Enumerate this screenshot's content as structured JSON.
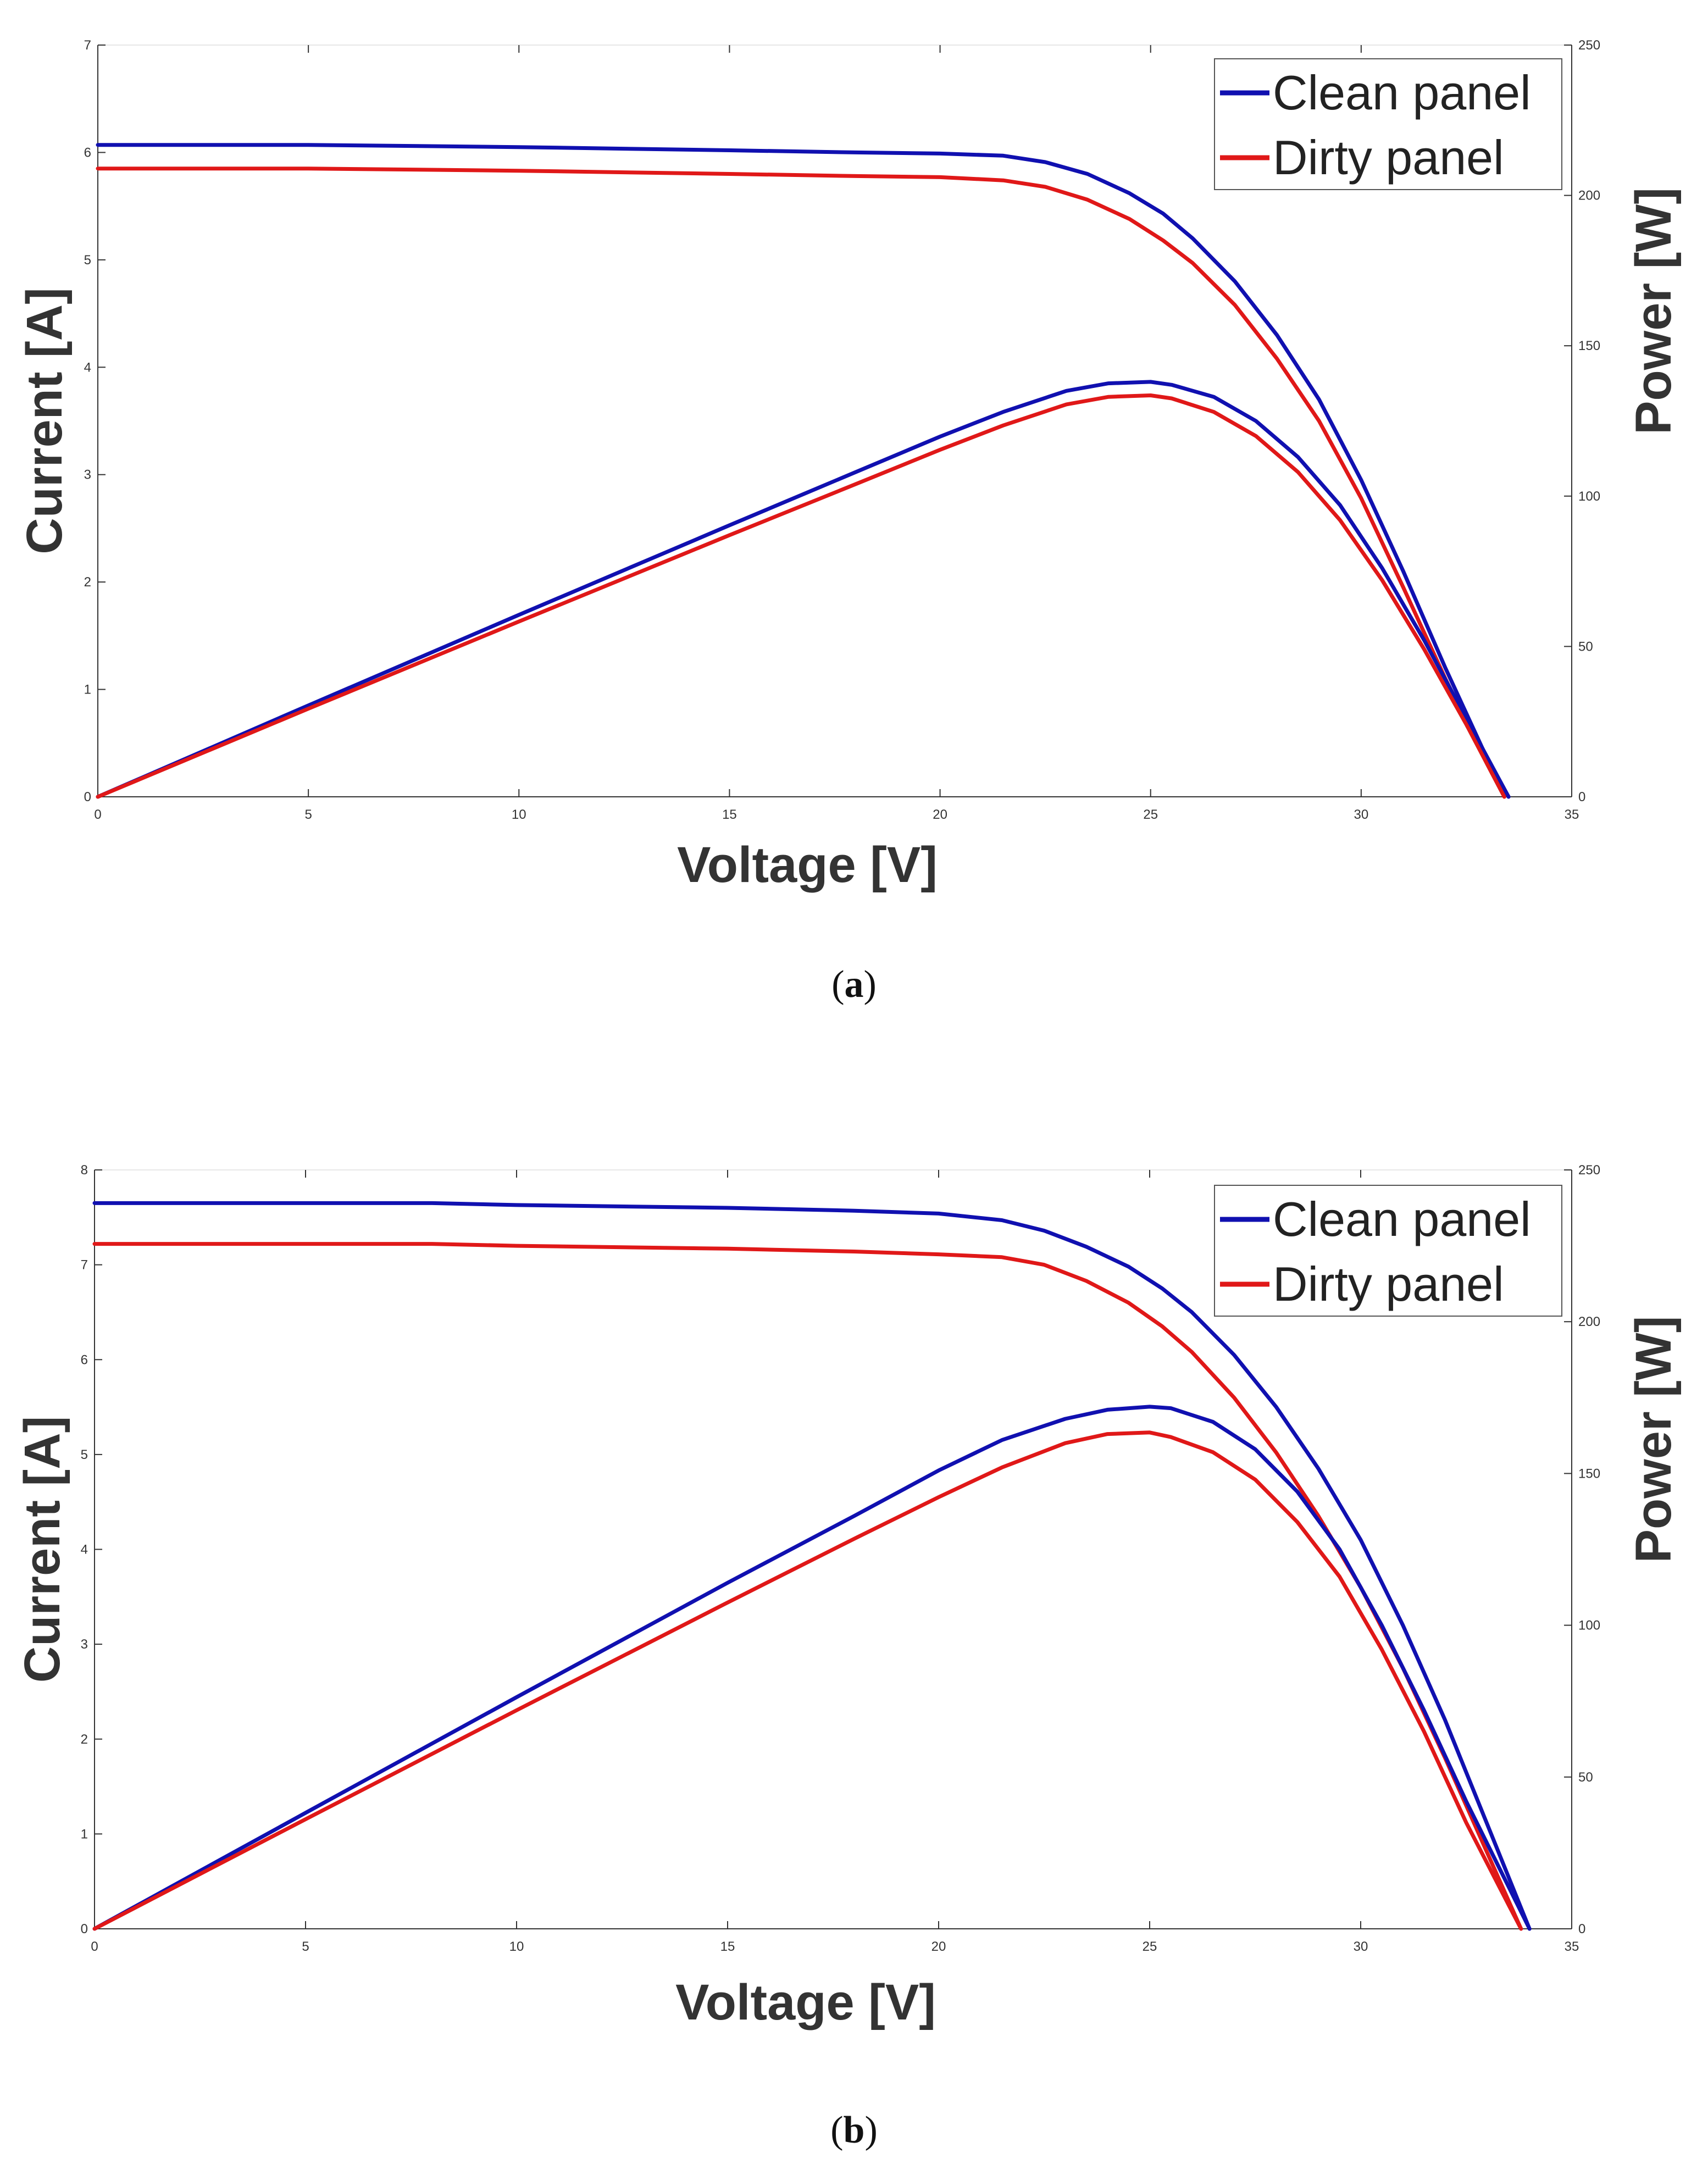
{
  "chart_data": [
    {
      "id": "a",
      "type": "line",
      "caption_open": "(",
      "caption_letter": "a",
      "caption_close": ")",
      "xlabel": "Voltage [V]",
      "ylabel": "Current [A]",
      "y2label": "Power [W]",
      "xlim": [
        0,
        35
      ],
      "ylim": [
        0,
        7
      ],
      "y2lim": [
        0,
        250
      ],
      "xticks": [
        "0",
        "5",
        "10",
        "15",
        "20",
        "25",
        "30",
        "35"
      ],
      "yticks": [
        "0",
        "1",
        "2",
        "3",
        "4",
        "5",
        "6",
        "7"
      ],
      "y2ticks": [
        "0",
        "50",
        "100",
        "150",
        "200",
        "250"
      ],
      "legend": {
        "position": "top-right",
        "entries": [
          "Clean panel",
          "Dirty panel"
        ]
      },
      "colors": {
        "clean": "#1010b0",
        "dirty": "#e01818"
      },
      "series": [
        {
          "name": "Clean panel",
          "kind": "current",
          "color": "#1010b0",
          "x": [
            0,
            5,
            10,
            15,
            18,
            20,
            21.5,
            22.5,
            23.5,
            24.5,
            25.3,
            26,
            27,
            28,
            29,
            30,
            31,
            32,
            33,
            33.5
          ],
          "y": [
            6.07,
            6.07,
            6.05,
            6.02,
            6.0,
            5.99,
            5.97,
            5.91,
            5.8,
            5.62,
            5.43,
            5.2,
            4.8,
            4.3,
            3.7,
            2.95,
            2.1,
            1.2,
            0.35,
            0
          ]
        },
        {
          "name": "Dirty panel",
          "kind": "current",
          "color": "#e01818",
          "x": [
            0,
            5,
            10,
            15,
            18,
            20,
            21.5,
            22.5,
            23.5,
            24.5,
            25.3,
            26,
            27,
            28,
            29,
            30,
            31,
            32,
            33,
            33.4
          ],
          "y": [
            5.85,
            5.85,
            5.83,
            5.8,
            5.78,
            5.77,
            5.74,
            5.68,
            5.56,
            5.38,
            5.18,
            4.97,
            4.58,
            4.08,
            3.5,
            2.78,
            1.95,
            1.1,
            0.3,
            0
          ]
        },
        {
          "name": "Clean panel",
          "kind": "power",
          "color": "#1010b0",
          "x": [
            0,
            5,
            10,
            15,
            18,
            20,
            21.5,
            23,
            24,
            25,
            25.5,
            26.5,
            27.5,
            28.5,
            29.5,
            30.5,
            31.5,
            32.5,
            33.5
          ],
          "y": [
            0,
            30.4,
            60.5,
            90.3,
            108,
            119.8,
            128,
            135,
            137.5,
            138,
            137,
            133,
            125,
            113,
            97,
            76,
            52,
            26,
            0
          ]
        },
        {
          "name": "Dirty panel",
          "kind": "power",
          "color": "#e01818",
          "x": [
            0,
            5,
            10,
            15,
            18,
            20,
            21.5,
            23,
            24,
            25,
            25.5,
            26.5,
            27.5,
            28.5,
            29.5,
            30.5,
            31.5,
            32.5,
            33.4
          ],
          "y": [
            0,
            29.3,
            58.3,
            87,
            104,
            115.4,
            123.5,
            130.5,
            133,
            133.5,
            132.5,
            128,
            120,
            108,
            92,
            72,
            49,
            24,
            0
          ]
        }
      ]
    },
    {
      "id": "b",
      "type": "line",
      "caption_open": "(",
      "caption_letter": "b",
      "caption_close": ")",
      "xlabel": "Voltage [V]",
      "ylabel": "Current [A]",
      "y2label": "Power [W]",
      "xlim": [
        0,
        35
      ],
      "ylim": [
        0,
        8
      ],
      "y2lim": [
        0,
        250
      ],
      "xticks": [
        "0",
        "5",
        "10",
        "15",
        "20",
        "25",
        "30",
        "35"
      ],
      "yticks": [
        "0",
        "1",
        "2",
        "3",
        "4",
        "5",
        "6",
        "7",
        "8"
      ],
      "y2ticks": [
        "0",
        "50",
        "100",
        "150",
        "200",
        "250"
      ],
      "legend": {
        "position": "top-right",
        "entries": [
          "Clean panel",
          "Dirty panel"
        ]
      },
      "colors": {
        "clean": "#1010b0",
        "dirty": "#e01818"
      },
      "series": [
        {
          "name": "Clean panel",
          "kind": "current",
          "color": "#1010b0",
          "x": [
            0,
            5,
            8,
            10,
            15,
            18,
            20,
            21.5,
            22.5,
            23.5,
            24.5,
            25.3,
            26,
            27,
            28,
            29,
            30,
            31,
            32,
            33,
            34
          ],
          "y": [
            7.65,
            7.65,
            7.65,
            7.63,
            7.6,
            7.57,
            7.54,
            7.47,
            7.36,
            7.19,
            6.98,
            6.75,
            6.5,
            6.05,
            5.5,
            4.85,
            4.1,
            3.2,
            2.2,
            1.1,
            0
          ]
        },
        {
          "name": "Dirty panel",
          "kind": "current",
          "color": "#e01818",
          "x": [
            0,
            5,
            8,
            10,
            15,
            18,
            20,
            21.5,
            22.5,
            23.5,
            24.5,
            25.3,
            26,
            27,
            28,
            29,
            30,
            31,
            32,
            33,
            33.8
          ],
          "y": [
            7.22,
            7.22,
            7.22,
            7.2,
            7.17,
            7.14,
            7.11,
            7.08,
            7.0,
            6.83,
            6.6,
            6.35,
            6.08,
            5.6,
            5.02,
            4.35,
            3.6,
            2.75,
            1.8,
            0.8,
            0
          ]
        },
        {
          "name": "Clean panel",
          "kind": "power",
          "color": "#1010b0",
          "x": [
            0,
            5,
            10,
            15,
            18,
            20,
            21.5,
            23,
            24,
            25,
            25.5,
            26.5,
            27.5,
            28.5,
            29.5,
            30.5,
            31.5,
            32.5,
            33.5,
            34
          ],
          "y": [
            0,
            38.2,
            76.3,
            114,
            136,
            151,
            161,
            168,
            171,
            172,
            171.5,
            167,
            158,
            144,
            125,
            100,
            72,
            42,
            14,
            0
          ]
        },
        {
          "name": "Dirty panel",
          "kind": "power",
          "color": "#e01818",
          "x": [
            0,
            5,
            10,
            15,
            18,
            20,
            21.5,
            23,
            24,
            25,
            25.5,
            26.5,
            27.5,
            28.5,
            29.5,
            30.5,
            31.5,
            32.5,
            33.5,
            33.8
          ],
          "y": [
            0,
            36.1,
            72,
            107.5,
            128.5,
            142.2,
            152,
            160,
            163,
            163.5,
            162,
            157,
            148,
            134,
            116,
            92,
            65,
            35,
            8,
            0
          ]
        }
      ]
    }
  ]
}
